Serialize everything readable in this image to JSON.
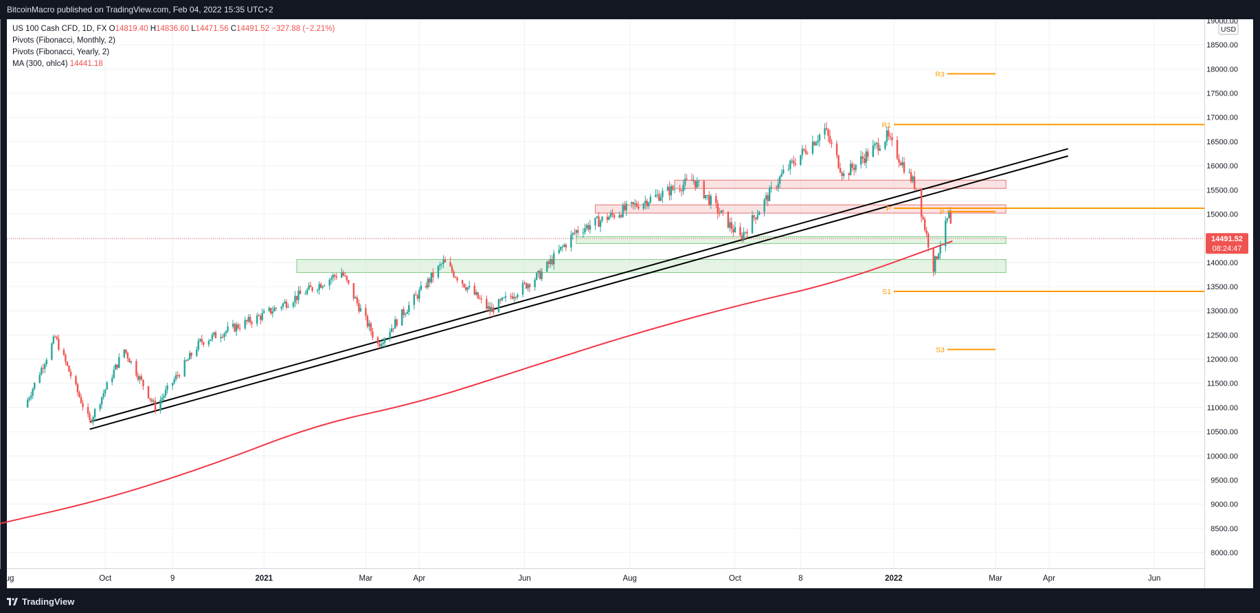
{
  "header": {
    "published": "BitcoinMacro published on TradingView.com, Feb 04, 2022 15:35 UTC+2"
  },
  "legend": {
    "symbol": "US 100 Cash CFD, 1D, FX",
    "o_label": "O",
    "o_value": "14819.40",
    "h_label": "H",
    "h_value": "14836.60",
    "l_label": "L",
    "l_value": "14471.56",
    "c_label": "C",
    "c_value": "14491.52",
    "change": "−327.88 (−2.21%)",
    "ind1": "Pivots (Fibonacci, Monthly, 2)",
    "ind2": "Pivots (Fibonacci, Yearly, 2)",
    "ind3_label": "MA (300, ohlc4)",
    "ind3_value": "14441.18"
  },
  "footer": {
    "brand": "TradingView"
  },
  "colors": {
    "up": "#26a69a",
    "down": "#ef5350",
    "ma": "#f23645",
    "pivot": "#ff9800",
    "grid": "#eef1f6",
    "trend": "#000000",
    "zone_red": "#f8d0d0",
    "zone_green": "#d4ecd4"
  },
  "chart_data": {
    "type": "candlestick",
    "title": "US 100 Cash CFD, 1D, FX",
    "currency": "USD",
    "y_axis": {
      "ticks": [
        8000,
        8500,
        9000,
        9500,
        10000,
        10500,
        11000,
        11500,
        12000,
        12500,
        13000,
        13500,
        14000,
        14500,
        15000,
        15500,
        16000,
        16500,
        17000,
        17500,
        18000,
        18500,
        19000
      ],
      "range": [
        7700,
        19000
      ]
    },
    "x_axis": {
      "labels": [
        "ug",
        "Oct",
        "9",
        "2021",
        "Mar",
        "Apr",
        "Jun",
        "Aug",
        "Oct",
        "8",
        "2022",
        "Mar",
        "Apr",
        "Jun"
      ]
    },
    "price_path": [
      {
        "date": "2020-08-15",
        "close": 11000
      },
      {
        "date": "2020-09-02",
        "close": 12450
      },
      {
        "date": "2020-09-22",
        "close": 10700
      },
      {
        "date": "2020-10-12",
        "close": 12200
      },
      {
        "date": "2020-10-30",
        "close": 11000
      },
      {
        "date": "2020-11-25",
        "close": 12350
      },
      {
        "date": "2020-12-31",
        "close": 12900
      },
      {
        "date": "2021-02-15",
        "close": 13800
      },
      {
        "date": "2021-03-08",
        "close": 12300
      },
      {
        "date": "2021-04-15",
        "close": 14000
      },
      {
        "date": "2021-05-12",
        "close": 13000
      },
      {
        "date": "2021-06-10",
        "close": 13750
      },
      {
        "date": "2021-07-01",
        "close": 14650
      },
      {
        "date": "2021-07-30",
        "close": 15100
      },
      {
        "date": "2021-09-07",
        "close": 15700
      },
      {
        "date": "2021-10-04",
        "close": 14500
      },
      {
        "date": "2021-10-29",
        "close": 15850
      },
      {
        "date": "2021-11-22",
        "close": 16750
      },
      {
        "date": "2021-12-03",
        "close": 15800
      },
      {
        "date": "2021-12-28",
        "close": 16600
      },
      {
        "date": "2022-01-14",
        "close": 15550
      },
      {
        "date": "2022-01-24",
        "close": 13900
      },
      {
        "date": "2022-02-02",
        "close": 14990
      },
      {
        "date": "2022-02-04",
        "close": 14491.52
      }
    ],
    "ma_300": [
      {
        "date": "2020-08-01",
        "value": 8600
      },
      {
        "date": "2020-10-01",
        "value": 9100
      },
      {
        "date": "2020-12-01",
        "value": 9800
      },
      {
        "date": "2021-02-01",
        "value": 10650
      },
      {
        "date": "2021-04-01",
        "value": 11100
      },
      {
        "date": "2021-06-01",
        "value": 11800
      },
      {
        "date": "2021-08-01",
        "value": 12500
      },
      {
        "date": "2021-10-01",
        "value": 13100
      },
      {
        "date": "2021-12-01",
        "value": 13600
      },
      {
        "date": "2022-02-04",
        "value": 14441.18
      }
    ],
    "pivots": [
      {
        "label": "R3",
        "price": 17900,
        "from": "2022-02-01",
        "to": "2022-03-01"
      },
      {
        "label": "R1",
        "price": 16850,
        "from": "2022-01-01",
        "to": "2022-06-30"
      },
      {
        "label": "P",
        "price": 15120,
        "from": "2022-01-01",
        "to": "2022-06-30"
      },
      {
        "label": "P",
        "price": 15050,
        "from": "2022-02-01",
        "to": "2022-03-01"
      },
      {
        "label": "S1",
        "price": 13400,
        "from": "2022-01-01",
        "to": "2022-06-30"
      },
      {
        "label": "S3",
        "price": 12200,
        "from": "2022-02-01",
        "to": "2022-03-01"
      }
    ],
    "trendlines": [
      {
        "from": {
          "date": "2020-09-22",
          "price": 10700
        },
        "to": {
          "date": "2022-04-12",
          "price": 16350
        }
      },
      {
        "from": {
          "date": "2020-09-22",
          "price": 10550
        },
        "to": {
          "date": "2022-04-12",
          "price": 16200
        }
      }
    ],
    "zones": [
      {
        "color": "red",
        "from": "2021-08-27",
        "to": "2022-03-07",
        "low": 15530,
        "high": 15700
      },
      {
        "color": "red",
        "from": "2021-07-12",
        "to": "2022-03-07",
        "low": 15020,
        "high": 15190
      },
      {
        "color": "green",
        "from": "2021-07-01",
        "to": "2022-03-07",
        "low": 14390,
        "high": 14530
      },
      {
        "color": "green",
        "from": "2021-01-20",
        "to": "2022-03-07",
        "low": 13790,
        "high": 14060
      }
    ],
    "last_price": "14491.52",
    "countdown": "08:24:47"
  }
}
